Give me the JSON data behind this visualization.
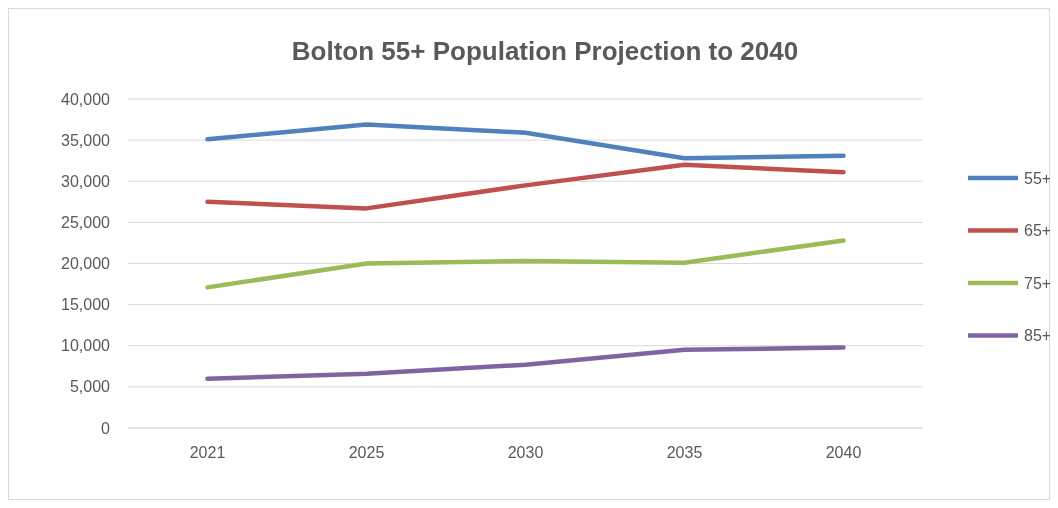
{
  "chart_data": {
    "type": "line",
    "title": "Bolton 55+ Population Projection to 2040",
    "categories": [
      "2021",
      "2025",
      "2030",
      "2035",
      "2040"
    ],
    "series": [
      {
        "name": "55+",
        "color": "#4f81bd",
        "values": [
          35100,
          36900,
          35900,
          32800,
          33100
        ]
      },
      {
        "name": "65+",
        "color": "#c0504d",
        "values": [
          27500,
          26700,
          29500,
          32000,
          31100
        ]
      },
      {
        "name": "75+",
        "color": "#9bbb59",
        "values": [
          17100,
          20000,
          20300,
          20100,
          22800
        ]
      },
      {
        "name": "85+",
        "color": "#8064a2",
        "values": [
          6000,
          6600,
          7700,
          9500,
          9800
        ]
      }
    ],
    "ylim": [
      0,
      40000
    ],
    "yticks": [
      {
        "value": 0,
        "label": "0"
      },
      {
        "value": 5000,
        "label": "5,000"
      },
      {
        "value": 10000,
        "label": "10,000"
      },
      {
        "value": 15000,
        "label": "15,000"
      },
      {
        "value": 20000,
        "label": "20,000"
      },
      {
        "value": 25000,
        "label": "25,000"
      },
      {
        "value": 30000,
        "label": "30,000"
      },
      {
        "value": 35000,
        "label": "35,000"
      },
      {
        "value": 40000,
        "label": "40,000"
      }
    ],
    "grid": "y",
    "legend": "right",
    "marker": "none",
    "line_style": "solid"
  }
}
